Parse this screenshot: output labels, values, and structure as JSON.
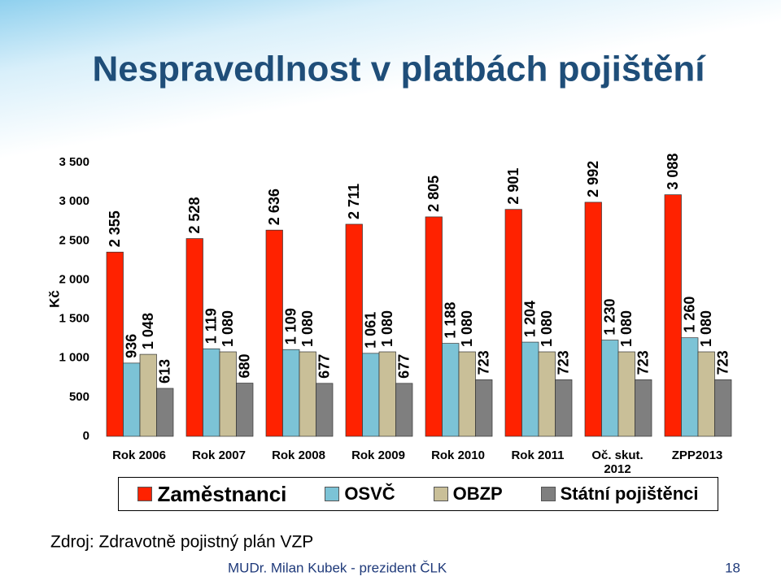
{
  "chart_data": {
    "type": "bar",
    "title": "Nespravedlnost v platbách pojištění",
    "y_label": "Kč",
    "categories": [
      "Rok 2006",
      "Rok 2007",
      "Rok 2008",
      "Rok 2009",
      "Rok 2010",
      "Rok 2011",
      "Oč. skut. 2012",
      "ZPP2013"
    ],
    "series": [
      {
        "name": "Zaměstnanci",
        "color": "#ff2200",
        "values": [
          2355,
          2528,
          2636,
          2711,
          2805,
          2901,
          2992,
          3088
        ],
        "value_labels": [
          "2 355",
          "2 528",
          "2 636",
          "2 711",
          "2 805",
          "2 901",
          "2 992",
          "3 088"
        ]
      },
      {
        "name": "OSVČ",
        "color": "#7cc3d6",
        "values": [
          936,
          1119,
          1109,
          1061,
          1188,
          1204,
          1230,
          1260
        ],
        "value_labels": [
          "936",
          "1 119",
          "1 109",
          "1 061",
          "1 188",
          "1 204",
          "1 230",
          "1 260"
        ]
      },
      {
        "name": "OBZP",
        "color": "#c9bf98",
        "values": [
          1048,
          1080,
          1080,
          1080,
          1080,
          1080,
          1080,
          1080
        ],
        "value_labels": [
          "1 048",
          "1 080",
          "1 080",
          "1 080",
          "1 080",
          "1 080",
          "1 080",
          "1 080"
        ]
      },
      {
        "name": "Státní pojištěnci",
        "color": "#7f7f7f",
        "values": [
          613,
          680,
          677,
          677,
          723,
          723,
          723,
          723
        ],
        "value_labels": [
          "613",
          "680",
          "677",
          "677",
          "723",
          "723",
          "723",
          "723"
        ]
      }
    ],
    "ylim": [
      0,
      3500
    ],
    "yticks": [
      0,
      500,
      {
        "value": 1000,
        "label": "1 000"
      },
      {
        "value": 1500,
        "label": "1 500"
      },
      {
        "value": 2000,
        "label": "2 000"
      },
      {
        "value": 2500,
        "label": "2 500"
      },
      {
        "value": 3000,
        "label": "3 000"
      },
      {
        "value": 3500,
        "label": "3 500"
      }
    ],
    "grid": false
  },
  "source": "Zdroj: Zdravotně pojistný plán VZP",
  "footer": {
    "author": "MUDr. Milan Kubek - prezident ČLK",
    "page": "18"
  }
}
